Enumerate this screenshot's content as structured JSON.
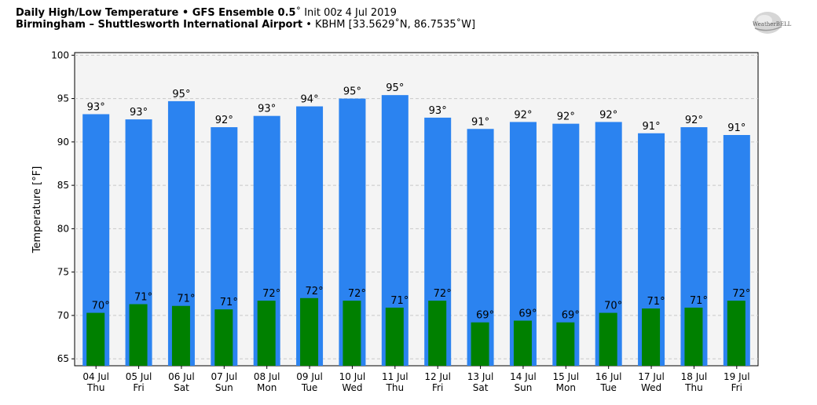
{
  "header": {
    "title_bold": "Daily High/Low Temperature • GFS Ensemble 0.5",
    "title_rest": "˚ Init 00z 4 Jul 2019",
    "subtitle_bold": "Birmingham – Shuttlesworth International Airport",
    "subtitle_rest": " • KBHM [33.5629˚N, 86.7535˚W]"
  },
  "logo": {
    "text": "WeatherBELL"
  },
  "chart_data": {
    "type": "bar",
    "ylabel": "Temperature [°F]",
    "ylim": [
      64.2,
      100.3
    ],
    "yticks": [
      65,
      70,
      75,
      80,
      85,
      90,
      95,
      100
    ],
    "grid": true,
    "degree_suffix": "°",
    "categories": [
      {
        "date": "04 Jul",
        "day": "Thu"
      },
      {
        "date": "05 Jul",
        "day": "Fri"
      },
      {
        "date": "06 Jul",
        "day": "Sat"
      },
      {
        "date": "07 Jul",
        "day": "Sun"
      },
      {
        "date": "08 Jul",
        "day": "Mon"
      },
      {
        "date": "09 Jul",
        "day": "Tue"
      },
      {
        "date": "10 Jul",
        "day": "Wed"
      },
      {
        "date": "11 Jul",
        "day": "Thu"
      },
      {
        "date": "12 Jul",
        "day": "Fri"
      },
      {
        "date": "13 Jul",
        "day": "Sat"
      },
      {
        "date": "14 Jul",
        "day": "Sun"
      },
      {
        "date": "15 Jul",
        "day": "Mon"
      },
      {
        "date": "16 Jul",
        "day": "Tue"
      },
      {
        "date": "17 Jul",
        "day": "Wed"
      },
      {
        "date": "18 Jul",
        "day": "Thu"
      },
      {
        "date": "19 Jul",
        "day": "Fri"
      }
    ],
    "series": [
      {
        "role": "high",
        "color": "#2b83f0",
        "values": [
          93.2,
          92.6,
          94.7,
          91.7,
          93.0,
          94.1,
          95.0,
          95.4,
          92.8,
          91.5,
          92.3,
          92.1,
          92.3,
          91.0,
          91.7,
          90.8
        ],
        "labels": [
          93,
          93,
          95,
          92,
          93,
          94,
          95,
          95,
          93,
          91,
          92,
          92,
          92,
          91,
          92,
          91
        ]
      },
      {
        "role": "low",
        "color": "#008000",
        "values": [
          70.3,
          71.3,
          71.1,
          70.7,
          71.7,
          72.0,
          71.7,
          70.9,
          71.7,
          69.2,
          69.4,
          69.2,
          70.3,
          70.8,
          70.9,
          71.7
        ],
        "labels": [
          70,
          71,
          71,
          71,
          72,
          72,
          72,
          71,
          72,
          69,
          69,
          69,
          70,
          71,
          71,
          72
        ]
      }
    ]
  }
}
